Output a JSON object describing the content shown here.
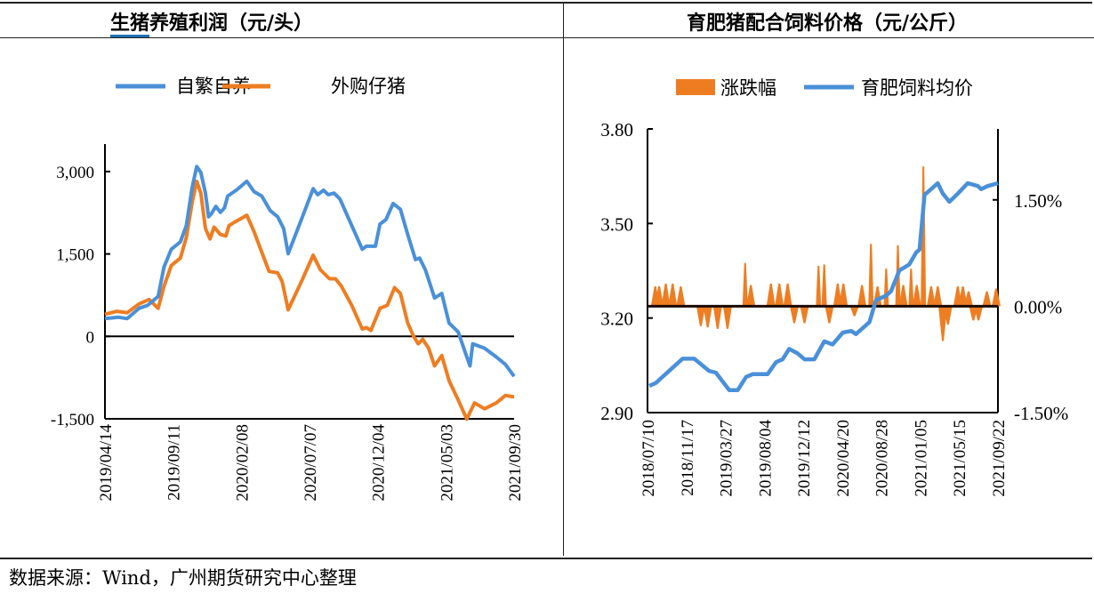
{
  "footer": "数据来源：Wind，广州期货研究中心整理",
  "colors": {
    "blue": "#4a90d9",
    "orange": "#ee7d22",
    "axis": "#000000",
    "title_underline": "#1f6fb0"
  },
  "chart_data": [
    {
      "type": "line",
      "title": "生猪养殖利润（元/头）",
      "title_underlined": "生猪",
      "title_rest": "养殖利润（元/头）",
      "xlabel": "",
      "ylabel": "",
      "ylim": [
        -1500,
        3500
      ],
      "yticks": [
        -1500,
        0,
        1500,
        3000
      ],
      "ytick_labels": [
        "-1,500",
        "0",
        "1,500",
        "3,000"
      ],
      "xlim": [
        "2019/04/14",
        "2021/09/30"
      ],
      "xticks": [
        "2019/04/14",
        "2019/09/11",
        "2020/02/08",
        "2020/07/07",
        "2020/12/04",
        "2021/05/03",
        "2021/09/30"
      ],
      "legend_placement": "top",
      "grid": false,
      "series": [
        {
          "name": "自繁自养",
          "color": "#4a90d9",
          "points": [
            [
              "2019-04-14",
              323
            ],
            [
              "2019-05-13",
              349
            ],
            [
              "2019-06-02",
              323
            ],
            [
              "2019-06-28",
              511
            ],
            [
              "2019-07-17",
              565
            ],
            [
              "2019-08-09",
              726
            ],
            [
              "2019-08-22",
              1263
            ],
            [
              "2019-09-07",
              1586
            ],
            [
              "2019-09-27",
              1720
            ],
            [
              "2019-10-10",
              2016
            ],
            [
              "2019-10-23",
              2715
            ],
            [
              "2019-11-02",
              3091
            ],
            [
              "2019-11-11",
              2984
            ],
            [
              "2019-11-21",
              2607
            ],
            [
              "2019-11-28",
              2177
            ],
            [
              "2019-12-04",
              2231
            ],
            [
              "2019-12-14",
              2365
            ],
            [
              "2019-12-24",
              2258
            ],
            [
              "2020-01-02",
              2339
            ],
            [
              "2020-01-09",
              2554
            ],
            [
              "2020-01-28",
              2661
            ],
            [
              "2020-02-20",
              2822
            ],
            [
              "2020-03-07",
              2634
            ],
            [
              "2020-03-24",
              2554
            ],
            [
              "2020-04-12",
              2285
            ],
            [
              "2020-04-28",
              2177
            ],
            [
              "2020-05-11",
              1962
            ],
            [
              "2020-05-21",
              1505
            ],
            [
              "2020-06-19",
              2124
            ],
            [
              "2020-07-15",
              2688
            ],
            [
              "2020-07-25",
              2580
            ],
            [
              "2020-08-07",
              2661
            ],
            [
              "2020-08-17",
              2580
            ],
            [
              "2020-08-30",
              2607
            ],
            [
              "2020-09-12",
              2500
            ],
            [
              "2020-10-08",
              2016
            ],
            [
              "2020-10-31",
              1586
            ],
            [
              "2020-11-09",
              1640
            ],
            [
              "2020-11-29",
              1640
            ],
            [
              "2020-12-09",
              2043
            ],
            [
              "2020-12-22",
              2124
            ],
            [
              "2021-01-07",
              2419
            ],
            [
              "2021-01-23",
              2312
            ],
            [
              "2021-02-08",
              1855
            ],
            [
              "2021-02-25",
              1398
            ],
            [
              "2021-03-06",
              1425
            ],
            [
              "2021-03-19",
              1210
            ],
            [
              "2021-04-08",
              699
            ],
            [
              "2021-04-24",
              780
            ],
            [
              "2021-05-10",
              242
            ],
            [
              "2021-05-30",
              81
            ],
            [
              "2021-06-25",
              -538
            ],
            [
              "2021-07-01",
              -134
            ],
            [
              "2021-07-27",
              -215
            ],
            [
              "2021-08-22",
              -376
            ],
            [
              "2021-09-11",
              -511
            ],
            [
              "2021-09-30",
              -726
            ]
          ]
        },
        {
          "name": "外购仔猪",
          "color": "#ee7d22",
          "points": [
            [
              "2019-04-14",
              403
            ],
            [
              "2019-05-10",
              457
            ],
            [
              "2019-06-02",
              430
            ],
            [
              "2019-06-28",
              591
            ],
            [
              "2019-07-20",
              672
            ],
            [
              "2019-08-09",
              511
            ],
            [
              "2019-08-22",
              914
            ],
            [
              "2019-09-07",
              1290
            ],
            [
              "2019-09-27",
              1425
            ],
            [
              "2019-10-10",
              1801
            ],
            [
              "2019-10-23",
              2446
            ],
            [
              "2019-11-02",
              2822
            ],
            [
              "2019-11-11",
              2607
            ],
            [
              "2019-11-21",
              1962
            ],
            [
              "2019-12-01",
              1774
            ],
            [
              "2019-12-10",
              1989
            ],
            [
              "2019-12-24",
              1855
            ],
            [
              "2020-01-05",
              1828
            ],
            [
              "2020-01-12",
              2016
            ],
            [
              "2020-01-28",
              2097
            ],
            [
              "2020-02-20",
              2204
            ],
            [
              "2020-03-07",
              1908
            ],
            [
              "2020-03-24",
              1532
            ],
            [
              "2020-04-09",
              1183
            ],
            [
              "2020-04-28",
              1156
            ],
            [
              "2020-05-08",
              995
            ],
            [
              "2020-05-21",
              484
            ],
            [
              "2020-06-19",
              995
            ],
            [
              "2020-07-15",
              1478
            ],
            [
              "2020-07-31",
              1210
            ],
            [
              "2020-08-20",
              1048
            ],
            [
              "2020-09-02",
              1048
            ],
            [
              "2020-09-15",
              914
            ],
            [
              "2020-10-08",
              564
            ],
            [
              "2020-10-31",
              134
            ],
            [
              "2020-11-09",
              161
            ],
            [
              "2020-11-19",
              108
            ],
            [
              "2020-12-09",
              511
            ],
            [
              "2020-12-25",
              564
            ],
            [
              "2021-01-10",
              887
            ],
            [
              "2021-01-23",
              780
            ],
            [
              "2021-02-08",
              242
            ],
            [
              "2021-02-21",
              0
            ],
            [
              "2021-03-03",
              -134
            ],
            [
              "2021-03-13",
              -54
            ],
            [
              "2021-03-26",
              -215
            ],
            [
              "2021-04-08",
              -538
            ],
            [
              "2021-04-24",
              -349
            ],
            [
              "2021-05-10",
              -806
            ],
            [
              "2021-05-30",
              -1156
            ],
            [
              "2021-06-18",
              -1505
            ],
            [
              "2021-07-05",
              -1210
            ],
            [
              "2021-07-27",
              -1317
            ],
            [
              "2021-08-22",
              -1210
            ],
            [
              "2021-09-11",
              -1075
            ],
            [
              "2021-09-30",
              -1102
            ]
          ]
        }
      ]
    },
    {
      "type": "line",
      "title": "育肥猪配合饲料价格（元/公斤）",
      "xlabel": "",
      "ylabel": "",
      "ylim": [
        2.9,
        3.8
      ],
      "yticks": [
        2.9,
        3.2,
        3.5,
        3.8
      ],
      "ytick_labels": [
        "2.90",
        "3.20",
        "3.50",
        "3.80"
      ],
      "y2lim": [
        -1.5,
        2.5
      ],
      "y2ticks": [
        -1.5,
        0,
        1.5
      ],
      "y2tick_labels": [
        "-1.50%",
        "0.00%",
        "1.50%"
      ],
      "xlim": [
        "2018/07/10",
        "2021/09/22"
      ],
      "xticks": [
        "2018/07/10",
        "2018/11/17",
        "2019/03/27",
        "2019/08/04",
        "2019/12/12",
        "2020/04/20",
        "2020/08/28",
        "2021/01/05",
        "2021/05/15",
        "2021/09/22"
      ],
      "legend_placement": "top",
      "grid": false,
      "series": [
        {
          "name": "涨跌幅",
          "type": "area",
          "axis": "right",
          "unit": "%",
          "color": "#ee7d22",
          "points": [
            [
              "2018-08-05",
              0.28
            ],
            [
              "2018-08-18",
              0.28
            ],
            [
              "2018-09-09",
              0.32
            ],
            [
              "2018-10-02",
              0.32
            ],
            [
              "2018-10-29",
              0.28
            ],
            [
              "2019-01-04",
              -0.28
            ],
            [
              "2019-01-27",
              -0.3
            ],
            [
              "2019-03-01",
              -0.32
            ],
            [
              "2019-04-03",
              -0.32
            ],
            [
              "2019-06-01",
              0.61
            ],
            [
              "2019-06-20",
              0.3
            ],
            [
              "2019-08-26",
              0.32
            ],
            [
              "2019-09-23",
              0.32
            ],
            [
              "2019-10-21",
              0.32
            ],
            [
              "2019-11-12",
              -0.24
            ],
            [
              "2019-12-16",
              -0.24
            ],
            [
              "2020-02-01",
              0.57
            ],
            [
              "2020-02-20",
              0.59
            ],
            [
              "2020-03-08",
              -0.24
            ],
            [
              "2020-04-05",
              0.32
            ],
            [
              "2020-04-24",
              0.32
            ],
            [
              "2020-05-31",
              -0.14
            ],
            [
              "2020-06-25",
              0.3
            ],
            [
              "2020-07-25",
              0.88
            ],
            [
              "2020-08-16",
              0.28
            ],
            [
              "2020-09-14",
              0.53
            ],
            [
              "2020-10-23",
              0.86
            ],
            [
              "2020-11-10",
              0.3
            ],
            [
              "2020-12-06",
              0.53
            ],
            [
              "2020-12-25",
              0.3
            ],
            [
              "2021-01-16",
              1.97
            ],
            [
              "2021-02-11",
              0.28
            ],
            [
              "2021-03-05",
              0.28
            ],
            [
              "2021-03-22",
              -0.49
            ],
            [
              "2021-04-08",
              -0.26
            ],
            [
              "2021-05-11",
              0.28
            ],
            [
              "2021-05-28",
              0.28
            ],
            [
              "2021-06-16",
              0.21
            ],
            [
              "2021-07-02",
              -0.2
            ],
            [
              "2021-07-19",
              -0.2
            ],
            [
              "2021-08-16",
              0.21
            ],
            [
              "2021-09-16",
              0.25
            ]
          ]
        },
        {
          "name": "育肥饲料均价",
          "type": "line",
          "axis": "left",
          "color": "#4a90d9",
          "points": [
            [
              "2018-07-16",
              2.985
            ],
            [
              "2018-08-07",
              2.994
            ],
            [
              "2018-08-29",
              3.013
            ],
            [
              "2018-09-20",
              3.032
            ],
            [
              "2018-11-04",
              3.071
            ],
            [
              "2018-12-13",
              3.071
            ],
            [
              "2019-02-01",
              3.032
            ],
            [
              "2019-02-23",
              3.027
            ],
            [
              "2019-04-09",
              2.971
            ],
            [
              "2019-05-07",
              2.971
            ],
            [
              "2019-06-04",
              3.013
            ],
            [
              "2019-06-26",
              3.022
            ],
            [
              "2019-08-15",
              3.022
            ],
            [
              "2019-09-12",
              3.06
            ],
            [
              "2019-10-04",
              3.069
            ],
            [
              "2019-10-26",
              3.102
            ],
            [
              "2019-11-23",
              3.088
            ],
            [
              "2019-12-16",
              3.069
            ],
            [
              "2020-01-18",
              3.069
            ],
            [
              "2020-02-20",
              3.126
            ],
            [
              "2020-03-19",
              3.116
            ],
            [
              "2020-04-22",
              3.154
            ],
            [
              "2020-05-20",
              3.159
            ],
            [
              "2020-06-05",
              3.149
            ],
            [
              "2020-07-20",
              3.187
            ],
            [
              "2020-08-11",
              3.257
            ],
            [
              "2020-09-14",
              3.271
            ],
            [
              "2020-09-30",
              3.285
            ],
            [
              "2020-10-28",
              3.351
            ],
            [
              "2020-11-30",
              3.37
            ],
            [
              "2020-12-23",
              3.408
            ],
            [
              "2021-01-03",
              3.417
            ],
            [
              "2021-01-20",
              3.591
            ],
            [
              "2021-02-11",
              3.609
            ],
            [
              "2021-03-05",
              3.628
            ],
            [
              "2021-03-22",
              3.595
            ],
            [
              "2021-04-13",
              3.569
            ],
            [
              "2021-05-11",
              3.595
            ],
            [
              "2021-06-13",
              3.628
            ],
            [
              "2021-07-17",
              3.619
            ],
            [
              "2021-07-28",
              3.609
            ],
            [
              "2021-08-19",
              3.619
            ],
            [
              "2021-09-22",
              3.628
            ]
          ]
        }
      ]
    }
  ]
}
